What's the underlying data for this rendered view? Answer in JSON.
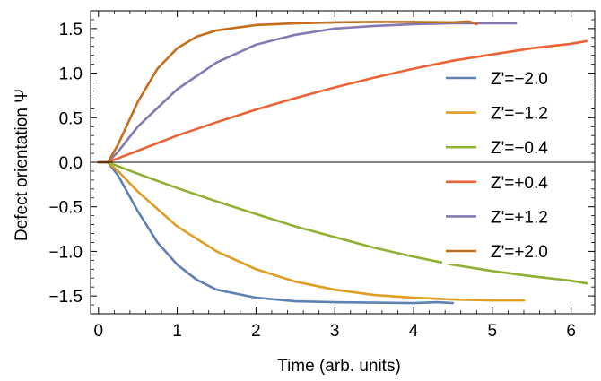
{
  "chart_data": {
    "type": "line",
    "title": "",
    "xlabel": "Time (arb. units)",
    "ylabel": "Defect orientation Ψ",
    "xlim": [
      -0.1,
      6.3
    ],
    "ylim": [
      -1.7,
      1.7
    ],
    "xticks": [
      0,
      1,
      2,
      3,
      4,
      5,
      6
    ],
    "xtick_labels": [
      "0",
      "1",
      "2",
      "3",
      "4",
      "5",
      "6"
    ],
    "yticks": [
      1.5,
      1.0,
      0.5,
      0.0,
      -0.5,
      -1.0,
      -1.5
    ],
    "ytick_labels": [
      "1.5",
      "1.0",
      "0.5",
      "0.0",
      "−0.5",
      "−1.0",
      "−1.5"
    ],
    "zero_line": true,
    "grid": false,
    "legend_position": "right",
    "series": [
      {
        "name": "Z'=−2.0",
        "color": "#5E81B5",
        "x": [
          0,
          0.12,
          0.25,
          0.5,
          0.75,
          1.0,
          1.25,
          1.5,
          2.0,
          2.5,
          3.0,
          3.5,
          4.0,
          4.3,
          4.5
        ],
        "y": [
          0,
          0,
          -0.15,
          -0.55,
          -0.9,
          -1.15,
          -1.32,
          -1.43,
          -1.52,
          -1.56,
          -1.57,
          -1.575,
          -1.58,
          -1.57,
          -1.58
        ]
      },
      {
        "name": "Z'=−1.2",
        "color": "#E19C24",
        "x": [
          0,
          0.12,
          0.25,
          0.5,
          1.0,
          1.5,
          2.0,
          2.5,
          3.0,
          3.5,
          4.0,
          4.5,
          5.0,
          5.4
        ],
        "y": [
          0,
          0,
          -0.1,
          -0.33,
          -0.72,
          -1.0,
          -1.2,
          -1.34,
          -1.43,
          -1.49,
          -1.52,
          -1.54,
          -1.55,
          -1.55
        ]
      },
      {
        "name": "Z'=−0.4",
        "color": "#8FB032",
        "x": [
          0,
          0.12,
          0.5,
          1.0,
          1.5,
          2.0,
          2.5,
          3.0,
          3.5,
          4.0,
          4.5,
          5.0,
          5.5,
          6.0,
          6.2
        ],
        "y": [
          0,
          0,
          -0.13,
          -0.29,
          -0.44,
          -0.58,
          -0.72,
          -0.84,
          -0.96,
          -1.06,
          -1.15,
          -1.22,
          -1.28,
          -1.33,
          -1.36
        ]
      },
      {
        "name": "Z'=+0.4",
        "color": "#EB6235",
        "x": [
          0,
          0.12,
          0.5,
          1.0,
          1.5,
          2.0,
          2.5,
          3.0,
          3.5,
          4.0,
          4.5,
          5.0,
          5.5,
          6.0,
          6.2
        ],
        "y": [
          0,
          0,
          0.13,
          0.3,
          0.45,
          0.59,
          0.72,
          0.84,
          0.95,
          1.05,
          1.14,
          1.21,
          1.28,
          1.33,
          1.36
        ]
      },
      {
        "name": "Z'=+1.2",
        "color": "#8778B3",
        "x": [
          0,
          0.12,
          0.25,
          0.5,
          1.0,
          1.5,
          2.0,
          2.5,
          3.0,
          3.5,
          4.0,
          4.5,
          5.0,
          5.3
        ],
        "y": [
          0,
          0,
          0.12,
          0.4,
          0.82,
          1.12,
          1.32,
          1.43,
          1.5,
          1.53,
          1.55,
          1.56,
          1.56,
          1.56
        ]
      },
      {
        "name": "Z'=+2.0",
        "color": "#C56E1A",
        "x": [
          0,
          0.12,
          0.25,
          0.5,
          0.75,
          1.0,
          1.25,
          1.5,
          2.0,
          2.5,
          3.0,
          3.5,
          4.0,
          4.5,
          4.7,
          4.8
        ],
        "y": [
          0,
          0,
          0.2,
          0.68,
          1.05,
          1.28,
          1.41,
          1.48,
          1.54,
          1.56,
          1.57,
          1.575,
          1.575,
          1.57,
          1.58,
          1.55
        ]
      }
    ]
  }
}
